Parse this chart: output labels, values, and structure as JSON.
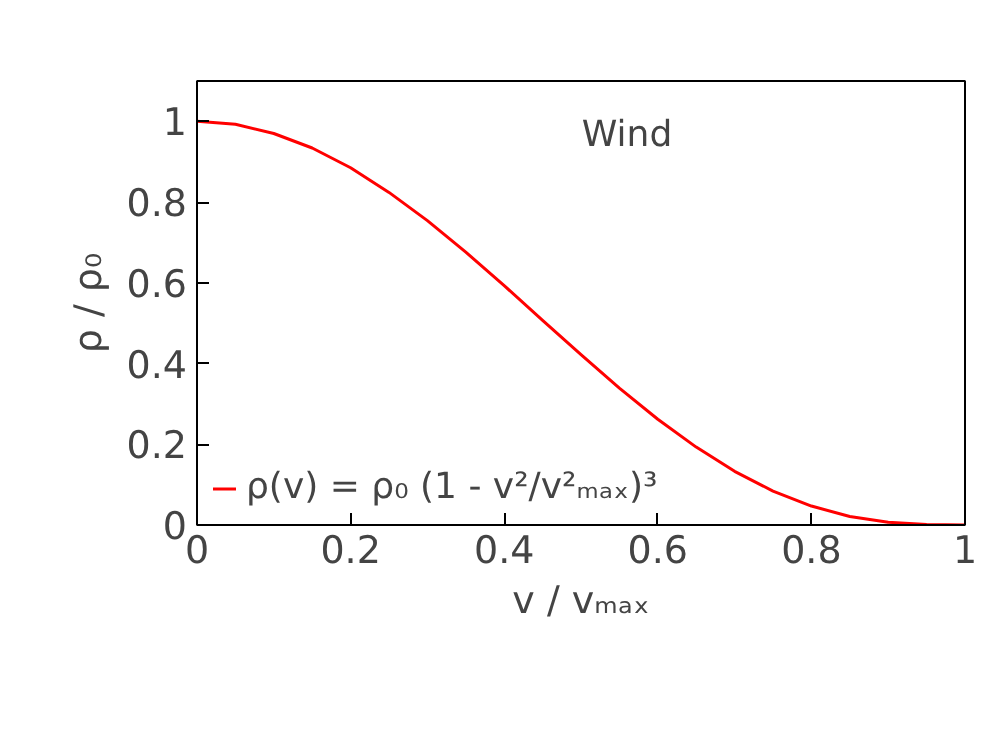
{
  "chart_data": {
    "type": "line",
    "xlabel": "v / vₘₐₓ",
    "ylabel": "ρ / ρ₀",
    "annotations": [
      "Wind"
    ],
    "x": [
      0,
      0.05,
      0.1,
      0.15,
      0.2,
      0.25,
      0.3,
      0.35,
      0.4,
      0.45,
      0.5,
      0.55,
      0.6,
      0.65,
      0.7,
      0.75,
      0.8,
      0.85,
      0.9,
      0.95,
      1
    ],
    "series": [
      {
        "name": "ρ(v) = ρ₀ (1 - v²/v²ₘₐₓ)³",
        "color": "#ff0000",
        "values": [
          1,
          0.993,
          0.97,
          0.934,
          0.885,
          0.824,
          0.754,
          0.676,
          0.593,
          0.507,
          0.422,
          0.339,
          0.262,
          0.193,
          0.133,
          0.084,
          0.047,
          0.021,
          0.007,
          0.001,
          0
        ]
      }
    ],
    "xlim": [
      0,
      1
    ],
    "ylim": [
      0,
      1.1
    ],
    "xticks": [
      0,
      0.2,
      0.4,
      0.6,
      0.8,
      1
    ],
    "yticks": [
      0,
      0.2,
      0.4,
      0.6,
      0.8,
      1
    ],
    "grid": false,
    "legend": "bottom left",
    "line_style": "solid"
  }
}
